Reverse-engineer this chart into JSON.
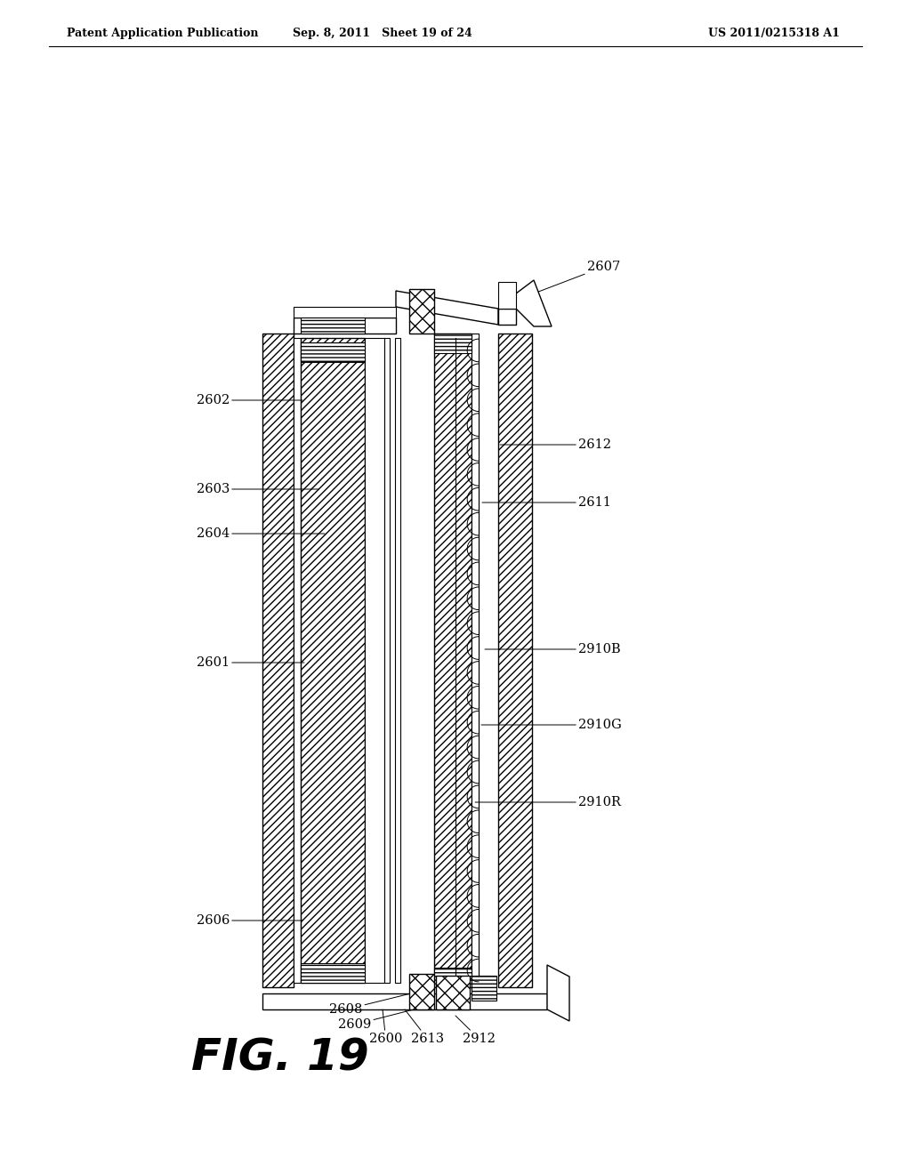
{
  "header_left": "Patent Application Publication",
  "header_mid": "Sep. 8, 2011   Sheet 19 of 24",
  "header_right": "US 2011/0215318 A1",
  "figure_label": "FIG. 19",
  "background_color": "#ffffff"
}
